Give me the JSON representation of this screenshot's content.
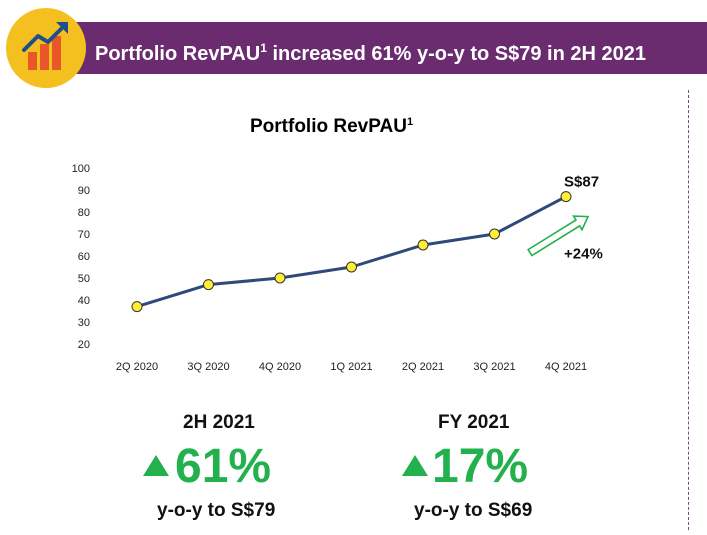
{
  "header": {
    "title": "Portfolio RevPAU",
    "title_sup": "1",
    "title_rest": " increased 61% y-o-y to S$79 in 2H 2021",
    "icon": "growth-chart-icon",
    "banner_color": "#6b2c6f"
  },
  "chart_data": {
    "type": "line",
    "title": "Portfolio RevPAU",
    "title_sup": "1",
    "categories": [
      "2Q 2020",
      "3Q 2020",
      "4Q 2020",
      "1Q 2021",
      "2Q 2021",
      "3Q 2021",
      "4Q 2021"
    ],
    "series": [
      {
        "name": "Portfolio RevPAU",
        "values": [
          37,
          47,
          50,
          55,
          65,
          70,
          87
        ]
      }
    ],
    "ylim": [
      20,
      100
    ],
    "yticks": [
      20,
      30,
      40,
      50,
      60,
      70,
      80,
      90,
      100
    ],
    "xlabel": "",
    "ylabel": "",
    "grid": false,
    "line_color": "#2e4a7a",
    "marker_color": "#ffee33",
    "annotations": {
      "last_value": "S$87",
      "growth": "+24%",
      "arrow_color": "#22b14c"
    }
  },
  "stats": [
    {
      "title": "2H 2021",
      "value": "61%",
      "sub": "y-o-y to S$79"
    },
    {
      "title": "FY 2021",
      "value": "17%",
      "sub": "y-o-y to S$69"
    }
  ],
  "colors": {
    "accent_green": "#22b14c"
  }
}
